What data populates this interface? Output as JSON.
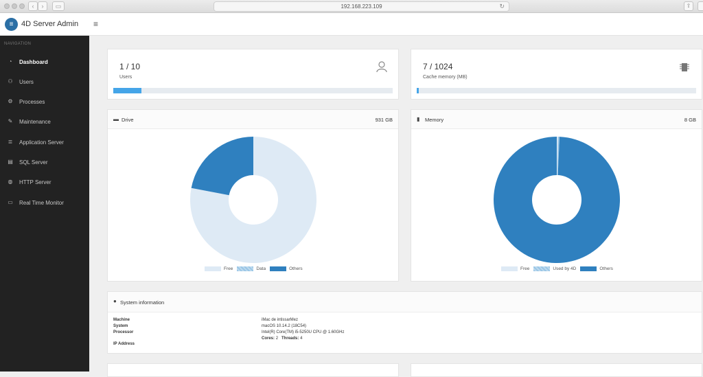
{
  "browser": {
    "url": "192.168.223.109"
  },
  "header": {
    "app_title": "4D Server Admin"
  },
  "sidebar": {
    "heading": "NAVIGATION",
    "items": [
      {
        "label": "Dashboard",
        "icon": "gauge-icon",
        "active": true
      },
      {
        "label": "Users",
        "icon": "users-icon"
      },
      {
        "label": "Processes",
        "icon": "cogs-icon"
      },
      {
        "label": "Maintenance",
        "icon": "wrench-icon"
      },
      {
        "label": "Application Server",
        "icon": "server-icon"
      },
      {
        "label": "SQL Server",
        "icon": "database-icon"
      },
      {
        "label": "HTTP Server",
        "icon": "globe-icon"
      },
      {
        "label": "Real Time Monitor",
        "icon": "monitor-icon"
      }
    ]
  },
  "users_card": {
    "value": "1 / 10",
    "label": "Users",
    "progress": 0.1
  },
  "cache_card": {
    "value": "7 / 1024",
    "label": "Cache memory (MB)",
    "progress": 0.007
  },
  "drive_panel": {
    "title": "Drive",
    "total": "931 GB",
    "legend": [
      "Free",
      "Data",
      "Others"
    ],
    "slices": [
      {
        "name": "Free",
        "value": 0.78,
        "color": "#deeaf5"
      },
      {
        "name": "Data",
        "value": 0.0,
        "color": "#9ac6e6"
      },
      {
        "name": "Others",
        "value": 0.22,
        "color": "#2f80bf"
      }
    ]
  },
  "memory_panel": {
    "title": "Memory",
    "total": "8 GB",
    "legend": [
      "Free",
      "Used by 4D",
      "Others"
    ],
    "slices": [
      {
        "name": "Free",
        "value": 0.003,
        "color": "#deeaf5"
      },
      {
        "name": "Used by 4D",
        "value": 0.004,
        "color": "#9ac6e6"
      },
      {
        "name": "Others",
        "value": 0.993,
        "color": "#2f80bf"
      }
    ]
  },
  "system_info": {
    "title": "System information",
    "labels": [
      "Machine",
      "System",
      "Processor",
      "IP Address"
    ],
    "machine": "iMac de intissarMez",
    "system": "macOS 10.14.2 (18C54)",
    "processor": "Intel(R) Core(TM) i5-5250U CPU @ 1.60GHz",
    "cores_label": "Cores:",
    "cores": "2",
    "threads_label": "Threads:",
    "threads": "4"
  },
  "colors": {
    "accent": "#45a5e8",
    "chart_dark": "#2f80bf",
    "chart_light": "#deeaf5",
    "chart_mid": "#9ac6e6",
    "sidebar": "#222222"
  }
}
